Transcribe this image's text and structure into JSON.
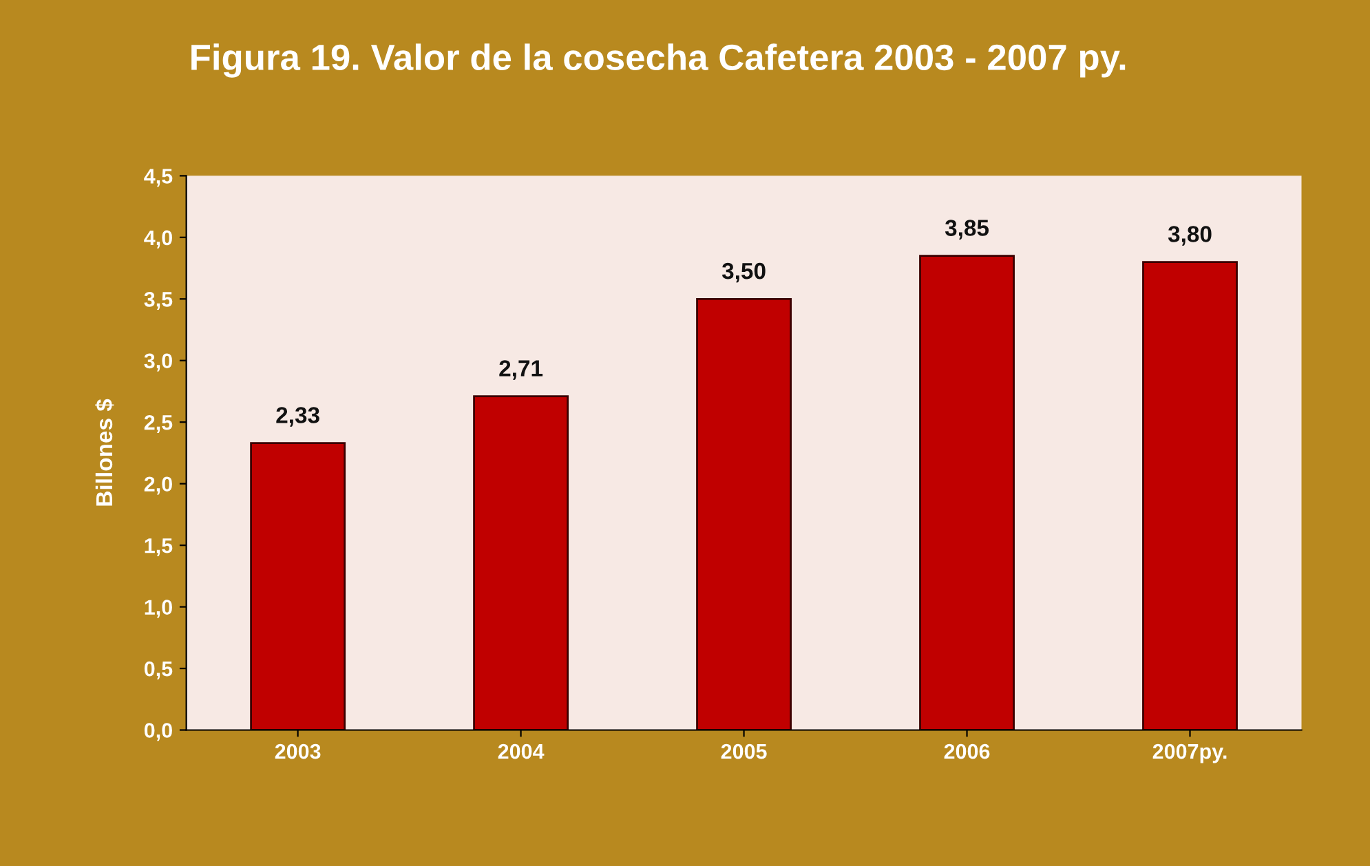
{
  "chart_data": {
    "type": "bar",
    "title": "Figura 19. Valor de la cosecha Cafetera 2003 - 2007 py.",
    "ylabel": "Billones $",
    "categories": [
      "2003",
      "2004",
      "2005",
      "2006",
      "2007py."
    ],
    "values": [
      2.33,
      2.71,
      3.5,
      3.85,
      3.8
    ],
    "value_labels": [
      "2,33",
      "2,71",
      "3,50",
      "3,85",
      "3,80"
    ],
    "color": "#c00000",
    "ylim": [
      0,
      4.5
    ],
    "yticks": [
      {
        "value": 0,
        "label": "0,0"
      },
      {
        "value": 0.5,
        "label": "0,5"
      },
      {
        "value": 1,
        "label": "1,0"
      },
      {
        "value": 1.5,
        "label": "1,5"
      },
      {
        "value": 2,
        "label": "2,0"
      },
      {
        "value": 2.5,
        "label": "2,5"
      },
      {
        "value": 3,
        "label": "3,0"
      },
      {
        "value": 3.5,
        "label": "3,5"
      },
      {
        "value": 4,
        "label": "4,0"
      },
      {
        "value": 4.5,
        "label": "4,5"
      }
    ],
    "grid": false
  }
}
